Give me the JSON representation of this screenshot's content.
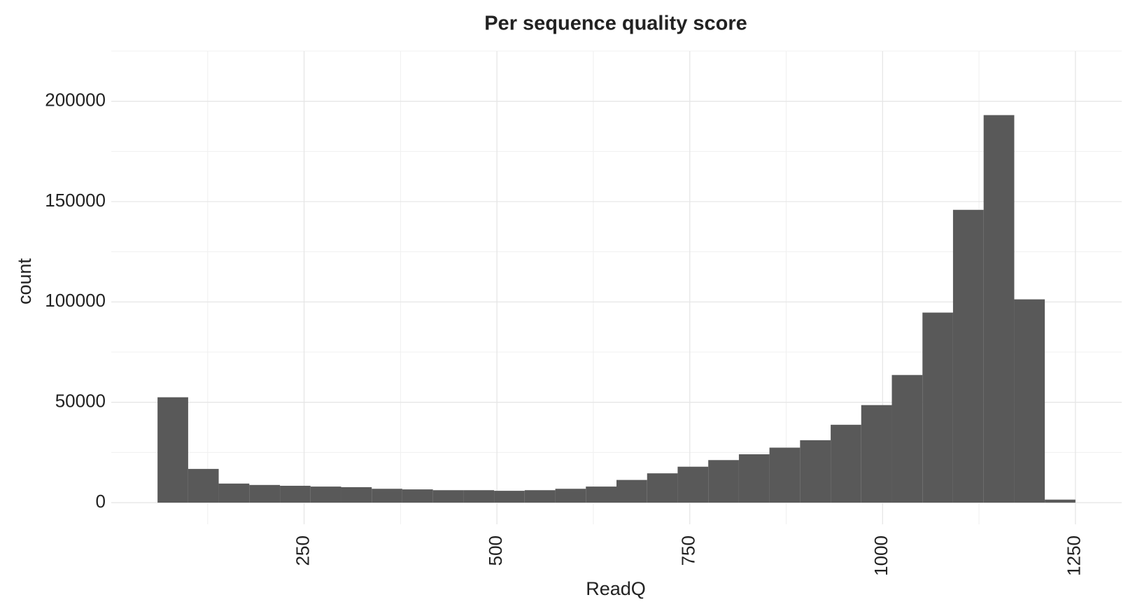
{
  "chart_data": {
    "type": "histogram",
    "title": "Per sequence quality score",
    "x_label": "ReadQ",
    "y_label": "count",
    "bins": [
      60.0,
      99.7,
      139.3,
      179.0,
      218.7,
      258.3,
      298.0,
      337.7,
      377.3,
      417.0,
      456.7,
      496.3,
      536.0,
      575.7,
      615.3,
      655.0,
      694.7,
      734.3,
      774.0,
      813.7,
      853.3,
      893.0,
      932.7,
      972.3,
      1012.0,
      1051.7,
      1091.3,
      1131.0,
      1170.7,
      1210.3,
      1250.0
    ],
    "values": [
      52500,
      16800,
      9500,
      8800,
      8400,
      8000,
      7700,
      6900,
      6600,
      6200,
      6200,
      5900,
      6200,
      6900,
      8000,
      11300,
      14600,
      17900,
      21200,
      24100,
      27400,
      31100,
      38800,
      48600,
      63600,
      94700,
      145900,
      193100,
      101300,
      1500
    ],
    "color": "#595959",
    "xlim": [
      0,
      1310
    ],
    "xticks": [
      250,
      500,
      750,
      1000,
      1250
    ],
    "xminor": [
      125,
      375,
      625,
      875,
      1125
    ],
    "ylim": [
      -10800,
      225000
    ],
    "yticks": [
      0,
      50000,
      100000,
      150000,
      200000
    ],
    "yminor": [
      25000,
      75000,
      125000,
      175000,
      225000
    ],
    "grid": true
  }
}
